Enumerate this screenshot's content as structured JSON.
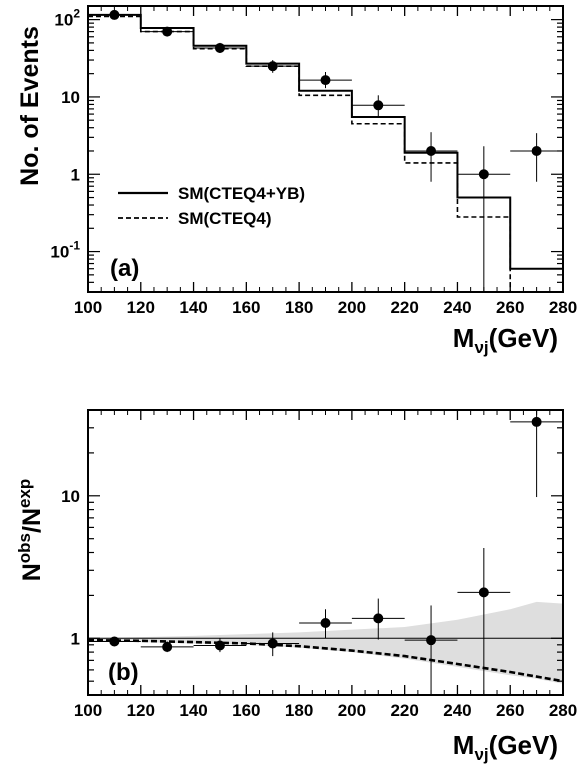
{
  "chart_data": [
    {
      "type": "line",
      "panel_label": "(a)",
      "xlabel_main": "M",
      "xlabel_sub": "νj",
      "xlabel_unit": "(GeV)",
      "ylabel": "No. of Events",
      "xlim": [
        100,
        280
      ],
      "ylim": [
        0.03,
        150
      ],
      "yscale": "log",
      "x_ticks": [
        "100",
        "120",
        "140",
        "160",
        "180",
        "200",
        "220",
        "240",
        "260",
        "280"
      ],
      "y_ticks": [
        {
          "value": 100,
          "base": "10",
          "exp": "2"
        },
        {
          "value": 10,
          "base": "10",
          "exp": ""
        },
        {
          "value": 1,
          "base": "1",
          "exp": ""
        },
        {
          "value": 0.1,
          "base": "10",
          "exp": "-1"
        }
      ],
      "bin_edges": [
        100,
        120,
        140,
        160,
        180,
        200,
        220,
        240,
        260,
        280
      ],
      "series": [
        {
          "name": "SM(CTEQ4+YB)",
          "style": "solid",
          "values": [
            115,
            78,
            46,
            27,
            12,
            5.5,
            1.9,
            0.5,
            0.06
          ]
        },
        {
          "name": "SM(CTEQ4)",
          "style": "dashed",
          "values": [
            110,
            70,
            42,
            25,
            10.5,
            4.5,
            1.4,
            0.28,
            0.03
          ]
        }
      ],
      "points": [
        {
          "x": 110,
          "y": 115,
          "lo": 104,
          "hi": 127
        },
        {
          "x": 130,
          "y": 70,
          "lo": 62,
          "hi": 79
        },
        {
          "x": 150,
          "y": 43,
          "lo": 37,
          "hi": 50
        },
        {
          "x": 170,
          "y": 25,
          "lo": 20.5,
          "hi": 30
        },
        {
          "x": 190,
          "y": 16.5,
          "lo": 13,
          "hi": 21
        },
        {
          "x": 210,
          "y": 7.8,
          "lo": 5.5,
          "hi": 10.5
        },
        {
          "x": 230,
          "y": 2,
          "lo": 0.8,
          "hi": 3.5
        },
        {
          "x": 250,
          "y": 1,
          "lo": 0.03,
          "hi": 2.3
        },
        {
          "x": 270,
          "y": 2,
          "lo": 0.8,
          "hi": 3.4
        }
      ]
    },
    {
      "type": "scatter",
      "panel_label": "(b)",
      "xlabel_main": "M",
      "xlabel_sub": "νj",
      "xlabel_unit": "(GeV)",
      "ylabel_main": "N",
      "ylabel_sup1": "obs",
      "ylabel_sep": "/N",
      "ylabel_sup2": "exp",
      "xlim": [
        100,
        280
      ],
      "ylim": [
        0.4,
        40
      ],
      "yscale": "log",
      "x_ticks": [
        "100",
        "120",
        "140",
        "160",
        "180",
        "200",
        "220",
        "240",
        "260",
        "280"
      ],
      "y_ticks": [
        {
          "value": 10,
          "label": "10"
        },
        {
          "value": 1,
          "label": "1"
        }
      ],
      "reference_line": 1,
      "band": {
        "x": [
          100,
          120,
          140,
          160,
          180,
          200,
          220,
          240,
          260,
          270,
          280
        ],
        "upper": [
          1.0,
          1.02,
          1.04,
          1.07,
          1.1,
          1.15,
          1.2,
          1.35,
          1.6,
          1.8,
          1.75
        ],
        "lower": [
          0.95,
          0.94,
          0.92,
          0.9,
          0.86,
          0.8,
          0.72,
          0.63,
          0.55,
          0.52,
          0.48
        ]
      },
      "dashed_curve": {
        "x": [
          100,
          120,
          140,
          160,
          180,
          200,
          220,
          240,
          260,
          280
        ],
        "y": [
          0.97,
          0.96,
          0.94,
          0.92,
          0.88,
          0.82,
          0.75,
          0.66,
          0.58,
          0.5
        ]
      },
      "points": [
        {
          "x": 110,
          "xl": 100,
          "xr": 120,
          "y": 0.95,
          "lo": 0.9,
          "hi": 1.0
        },
        {
          "x": 130,
          "xl": 120,
          "xr": 140,
          "y": 0.87,
          "lo": 0.8,
          "hi": 0.95
        },
        {
          "x": 150,
          "xl": 140,
          "xr": 160,
          "y": 0.89,
          "lo": 0.8,
          "hi": 1.0
        },
        {
          "x": 170,
          "xl": 160,
          "xr": 180,
          "y": 0.92,
          "lo": 0.75,
          "hi": 1.1
        },
        {
          "x": 190,
          "xl": 180,
          "xr": 200,
          "y": 1.28,
          "lo": 1.0,
          "hi": 1.6
        },
        {
          "x": 210,
          "xl": 200,
          "xr": 220,
          "y": 1.38,
          "lo": 0.98,
          "hi": 1.9
        },
        {
          "x": 230,
          "xl": 220,
          "xr": 240,
          "y": 0.97,
          "lo": 0.4,
          "hi": 1.7
        },
        {
          "x": 250,
          "xl": 240,
          "xr": 260,
          "y": 2.1,
          "lo": 0.4,
          "hi": 4.3
        },
        {
          "x": 270,
          "xl": 260,
          "xr": 280,
          "y": 33,
          "lo": 9.8,
          "hi": 40
        }
      ]
    }
  ]
}
